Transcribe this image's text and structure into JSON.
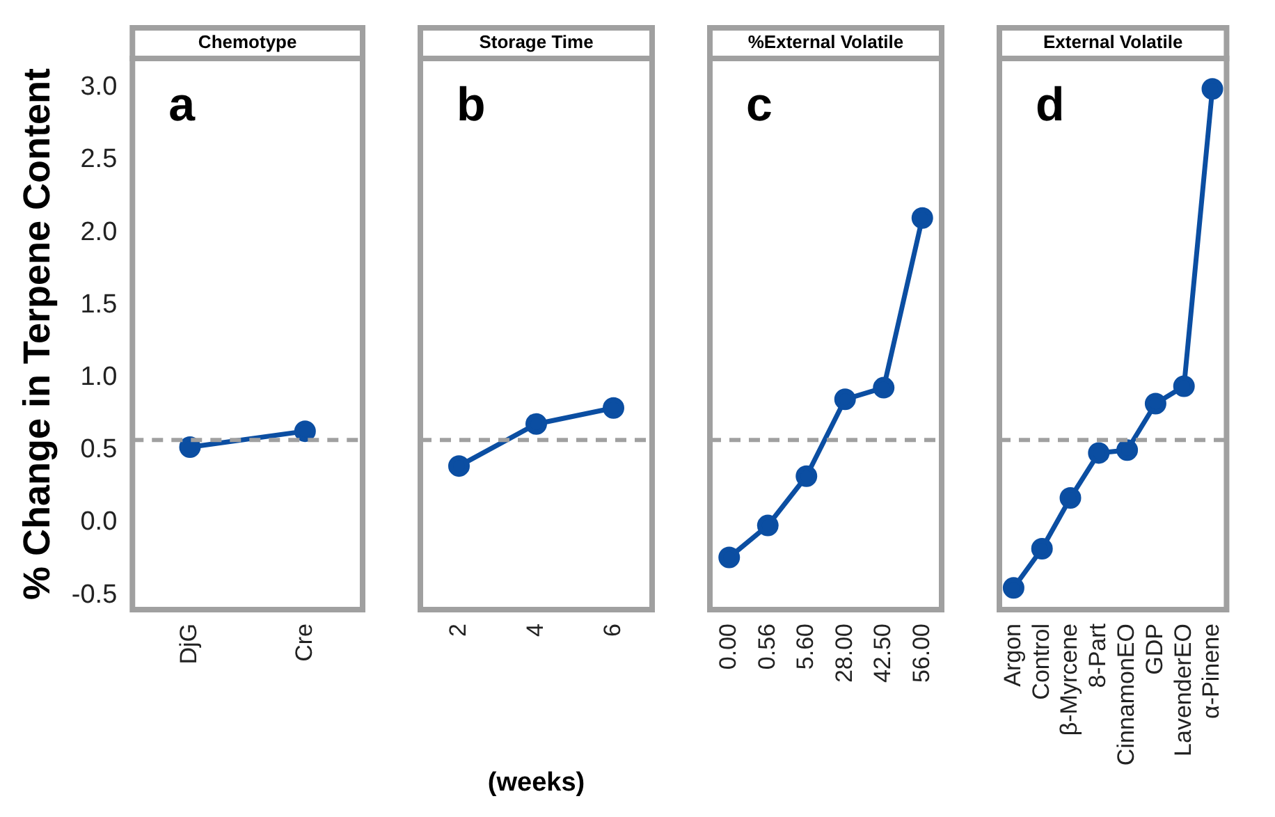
{
  "chart_data": [
    {
      "type": "line",
      "title": "Chemotype",
      "ylabel": "% Change in Terpene Content",
      "categories": [
        "DjG",
        "Cre"
      ],
      "values": [
        0.52,
        0.63
      ],
      "color": "#0b4ea2",
      "marker": "circle",
      "ylim": [
        -0.6,
        3.2
      ],
      "yticks": [
        {
          "value": -0.5,
          "label": "-0.5"
        },
        {
          "value": 0,
          "label": "0.0"
        },
        {
          "value": 0.5,
          "label": "0.5"
        },
        {
          "value": 1,
          "label": "1.0"
        },
        {
          "value": 1.5,
          "label": "1.5"
        },
        {
          "value": 2,
          "label": "2.0"
        },
        {
          "value": 2.5,
          "label": "2.5"
        },
        {
          "value": 3,
          "label": "3.0"
        }
      ],
      "ref_lines": [
        {
          "axis": "y",
          "value": 0.57,
          "color": "#a0a0a0",
          "line_style": "dashed"
        }
      ],
      "annotations": [
        "a"
      ],
      "grid": false,
      "legend": false
    },
    {
      "type": "line",
      "title": "Storage Time",
      "xlabel": "(weeks)",
      "categories": [
        "2",
        "4",
        "6"
      ],
      "values": [
        0.39,
        0.68,
        0.79
      ],
      "color": "#0b4ea2",
      "marker": "circle",
      "ylim": [
        -0.6,
        3.2
      ],
      "tick_labels": "x",
      "ref_lines": [
        {
          "axis": "y",
          "value": 0.57,
          "color": "#a0a0a0",
          "line_style": "dashed"
        }
      ],
      "annotations": [
        "b"
      ],
      "grid": false,
      "legend": false
    },
    {
      "type": "line",
      "title": "%External Volatile",
      "categories": [
        "0.00",
        "0.56",
        "5.60",
        "28.00",
        "42.50",
        "56.00"
      ],
      "values": [
        -0.24,
        -0.02,
        0.32,
        0.85,
        0.93,
        2.1
      ],
      "color": "#0b4ea2",
      "marker": "circle",
      "ylim": [
        -0.6,
        3.2
      ],
      "tick_labels": "x",
      "ref_lines": [
        {
          "axis": "y",
          "value": 0.57,
          "color": "#a0a0a0",
          "line_style": "dashed"
        }
      ],
      "annotations": [
        "c"
      ],
      "grid": false,
      "legend": false
    },
    {
      "type": "line",
      "title": "External Volatile",
      "categories": [
        "Argon",
        "Control",
        "β-Myrcene",
        "8-Part",
        "CinnamonEO",
        "GDP",
        "LavenderEO",
        "α-Pinene"
      ],
      "values": [
        -0.45,
        -0.18,
        0.17,
        0.48,
        0.5,
        0.82,
        0.94,
        2.99
      ],
      "color": "#0b4ea2",
      "marker": "circle",
      "ylim": [
        -0.6,
        3.2
      ],
      "tick_labels": "x",
      "ref_lines": [
        {
          "axis": "y",
          "value": 0.57,
          "color": "#a0a0a0",
          "line_style": "dashed"
        }
      ],
      "annotations": [
        "d"
      ],
      "grid": false,
      "legend": false
    }
  ]
}
